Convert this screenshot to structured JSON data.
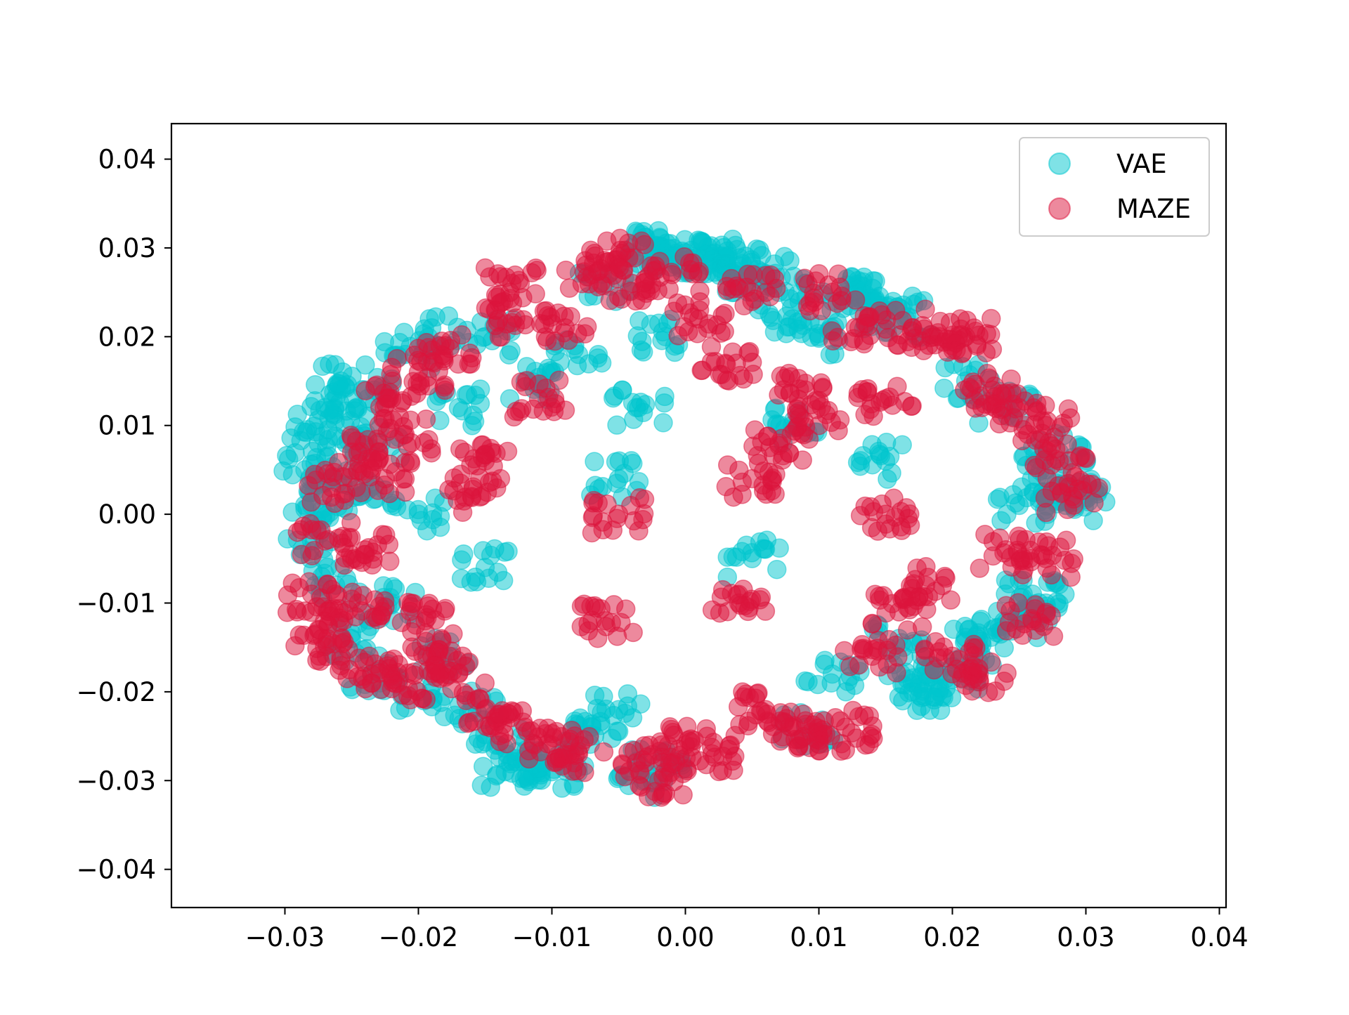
{
  "chart_data": {
    "type": "scatter",
    "title": "",
    "xlabel": "",
    "ylabel": "",
    "xlim": [
      -0.0385,
      0.0405
    ],
    "ylim": [
      -0.0443,
      0.044
    ],
    "x_ticks": [
      "−0.03",
      "−0.02",
      "−0.01",
      "0.00",
      "0.01",
      "0.02",
      "0.03",
      "0.04"
    ],
    "x_tick_values": [
      -0.03,
      -0.02,
      -0.01,
      0.0,
      0.01,
      0.02,
      0.03,
      0.04
    ],
    "y_ticks": [
      "0.04",
      "0.03",
      "0.02",
      "0.01",
      "0.00",
      "−0.01",
      "−0.02",
      "−0.03",
      "−0.04"
    ],
    "y_tick_values": [
      0.04,
      0.03,
      0.02,
      0.01,
      0.0,
      -0.01,
      -0.02,
      -0.03,
      -0.04
    ],
    "grid": false,
    "legend_position": "top-right",
    "series": [
      {
        "name": "VAE",
        "color": "#00c5cd",
        "alpha": 0.5,
        "marker": "circle",
        "points": [
          [
            -0.0285,
            0.005
          ],
          [
            -0.028,
            0.001
          ],
          [
            -0.0278,
            -0.003
          ],
          [
            -0.0275,
            0.008
          ],
          [
            -0.027,
            0.012
          ],
          [
            -0.0265,
            0.004
          ],
          [
            -0.0262,
            -0.008
          ],
          [
            -0.0258,
            0.015
          ],
          [
            -0.0255,
            0.01
          ],
          [
            -0.025,
            -0.014
          ],
          [
            -0.0245,
            0.002
          ],
          [
            -0.024,
            0.014
          ],
          [
            -0.0235,
            -0.018
          ],
          [
            -0.0228,
            0.008
          ],
          [
            -0.022,
            -0.01
          ],
          [
            -0.021,
            0.018
          ],
          [
            -0.02,
            -0.02
          ],
          [
            -0.019,
            0.021
          ],
          [
            -0.018,
            -0.016
          ],
          [
            -0.017,
            0.012
          ],
          [
            -0.016,
            -0.022
          ],
          [
            -0.015,
            0.02
          ],
          [
            -0.014,
            -0.026
          ],
          [
            -0.0135,
            -0.029
          ],
          [
            -0.012,
            0.015
          ],
          [
            -0.011,
            -0.028
          ],
          [
            -0.01,
            -0.029
          ],
          [
            -0.009,
            -0.027
          ],
          [
            -0.008,
            0.018
          ],
          [
            -0.007,
            -0.024
          ],
          [
            -0.006,
            0.026
          ],
          [
            -0.005,
            -0.022
          ],
          [
            -0.004,
            0.03
          ],
          [
            -0.0035,
            0.012
          ],
          [
            -0.003,
            -0.03
          ],
          [
            -0.0025,
            0.03
          ],
          [
            -0.002,
            -0.028
          ],
          [
            -0.0015,
            0.02
          ],
          [
            -0.001,
            0.029
          ],
          [
            0.0,
            0.029
          ],
          [
            0.001,
            0.029
          ],
          [
            0.002,
            0.029
          ],
          [
            0.003,
            0.029
          ],
          [
            0.004,
            0.028
          ],
          [
            0.005,
            0.027
          ],
          [
            0.006,
            0.027
          ],
          [
            0.007,
            0.025
          ],
          [
            0.008,
            0.022
          ],
          [
            0.009,
            -0.024
          ],
          [
            0.01,
            0.02
          ],
          [
            0.011,
            -0.018
          ],
          [
            0.012,
            0.025
          ],
          [
            0.013,
            0.025
          ],
          [
            0.014,
            0.024
          ],
          [
            0.015,
            0.023
          ],
          [
            0.016,
            -0.014
          ],
          [
            0.0165,
            0.022
          ],
          [
            0.017,
            -0.019
          ],
          [
            0.018,
            -0.019
          ],
          [
            0.019,
            -0.02
          ],
          [
            0.02,
            -0.018
          ],
          [
            0.021,
            0.015
          ],
          [
            0.022,
            -0.015
          ],
          [
            0.023,
            -0.013
          ],
          [
            0.024,
            0.012
          ],
          [
            0.025,
            -0.012
          ],
          [
            0.026,
            -0.009
          ],
          [
            0.027,
            -0.01
          ],
          [
            0.028,
            0.007
          ],
          [
            0.0285,
            0.001
          ],
          [
            0.029,
            0.002
          ],
          [
            0.0298,
            0.003
          ],
          [
            0.027,
            0.005
          ],
          [
            0.025,
            0.001
          ],
          [
            0.015,
            0.006
          ],
          [
            0.005,
            -0.005
          ],
          [
            -0.005,
            0.004
          ],
          [
            -0.015,
            -0.006
          ],
          [
            -0.02,
            0.0
          ],
          [
            0.008,
            0.01
          ]
        ]
      },
      {
        "name": "MAZE",
        "color": "#dc143c",
        "alpha": 0.5,
        "marker": "circle",
        "points": [
          [
            -0.028,
            -0.009
          ],
          [
            -0.0275,
            -0.013
          ],
          [
            -0.027,
            -0.003
          ],
          [
            -0.0265,
            0.003
          ],
          [
            -0.0258,
            -0.016
          ],
          [
            -0.025,
            0.007
          ],
          [
            -0.0245,
            -0.01
          ],
          [
            -0.024,
            -0.004
          ],
          [
            -0.0235,
            -0.018
          ],
          [
            -0.0225,
            0.004
          ],
          [
            -0.022,
            0.013
          ],
          [
            -0.0215,
            -0.019
          ],
          [
            -0.021,
            0.009
          ],
          [
            -0.02,
            0.016
          ],
          [
            -0.0195,
            -0.012
          ],
          [
            -0.019,
            -0.016
          ],
          [
            -0.018,
            0.019
          ],
          [
            -0.017,
            -0.018
          ],
          [
            -0.016,
            0.002
          ],
          [
            -0.015,
            -0.022
          ],
          [
            -0.014,
            0.022
          ],
          [
            -0.013,
            0.026
          ],
          [
            -0.012,
            -0.024
          ],
          [
            -0.011,
            0.013
          ],
          [
            -0.01,
            -0.026
          ],
          [
            -0.009,
            0.021
          ],
          [
            -0.008,
            -0.027
          ],
          [
            -0.007,
            0.027
          ],
          [
            -0.006,
            -0.012
          ],
          [
            -0.005,
            0.029
          ],
          [
            -0.004,
            0.026
          ],
          [
            -0.003,
            -0.028
          ],
          [
            -0.002,
            -0.03
          ],
          [
            -0.001,
            0.027
          ],
          [
            0.0,
            -0.026
          ],
          [
            0.001,
            0.022
          ],
          [
            0.002,
            -0.027
          ],
          [
            0.003,
            0.017
          ],
          [
            0.004,
            -0.01
          ],
          [
            0.005,
            0.025
          ],
          [
            0.006,
            -0.022
          ],
          [
            0.007,
            0.008
          ],
          [
            0.008,
            -0.024
          ],
          [
            0.009,
            0.014
          ],
          [
            0.01,
            -0.025
          ],
          [
            0.011,
            0.025
          ],
          [
            0.012,
            -0.024
          ],
          [
            0.013,
            0.021
          ],
          [
            0.014,
            -0.016
          ],
          [
            0.015,
            0.013
          ],
          [
            0.016,
            -0.011
          ],
          [
            0.017,
            0.021
          ],
          [
            0.018,
            -0.008
          ],
          [
            0.019,
            0.02
          ],
          [
            0.02,
            -0.016
          ],
          [
            0.021,
            0.02
          ],
          [
            0.022,
            -0.018
          ],
          [
            0.023,
            0.014
          ],
          [
            0.024,
            -0.004
          ],
          [
            0.025,
            0.012
          ],
          [
            0.026,
            -0.012
          ],
          [
            0.027,
            0.01
          ],
          [
            0.028,
            0.006
          ],
          [
            0.029,
            0.002
          ],
          [
            0.027,
            -0.005
          ],
          [
            0.015,
            0.0
          ],
          [
            0.005,
            0.004
          ],
          [
            -0.005,
            0.0
          ],
          [
            -0.015,
            0.006
          ],
          [
            0.01,
            0.01
          ]
        ]
      }
    ]
  }
}
